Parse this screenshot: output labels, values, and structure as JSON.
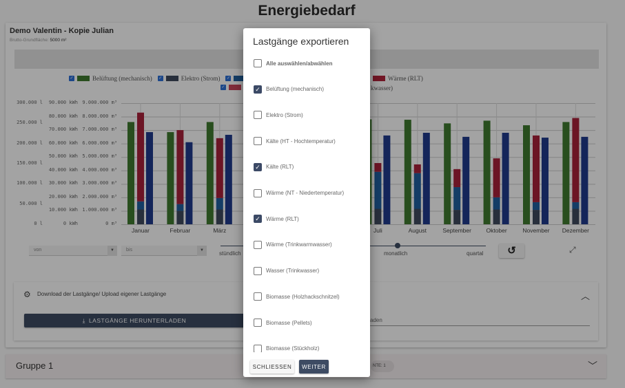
{
  "page": {
    "title": "Energiebedarf"
  },
  "card": {
    "title": "Demo Valentin - Kopie Julian",
    "area_label": "Brutto-Grundfläche:",
    "area_value": "5000 m²"
  },
  "legend": [
    {
      "label": "Belüftung (mechanisch)",
      "color": "#3f7a2f",
      "checked": true
    },
    {
      "label": "Elektro (Strom)",
      "color": "#3e4a5e",
      "checked": true
    },
    {
      "label": "",
      "color": "#1f5fa0",
      "checked": true
    },
    {
      "label": "Wärme (NT - Niedertemperatur)",
      "color": "#b0233a",
      "checked": true
    },
    {
      "label": "Wärme (RLT)",
      "color": "#b0233a",
      "checked": true
    }
  ],
  "legend_row2": [
    {
      "label": "",
      "color": "#c8455a",
      "checked": true
    }
  ],
  "legend_row2_tail": "kwasser)",
  "chart_data": {
    "type": "bar",
    "categories": [
      "Januar",
      "Februar",
      "März",
      "April",
      "Mai",
      "Juni",
      "Juli",
      "August",
      "September",
      "Oktober",
      "November",
      "Dezember"
    ],
    "y_axes": [
      {
        "ticks": [
          "0 l",
          "50.000 l",
          "100.000 l",
          "150.000 l",
          "200.000 l",
          "250.000 l",
          "300.000 l"
        ],
        "range": [
          0,
          300000
        ]
      },
      {
        "ticks": [
          "0 kWh",
          "10.000 kWh",
          "20.000 kWh",
          "30.000 kWh",
          "40.000 kWh",
          "50.000 kWh",
          "60.000 kWh",
          "70.000 kWh",
          "80.000 kWh",
          "90.000 kWh"
        ],
        "range": [
          0,
          90000
        ]
      },
      {
        "ticks": [
          "0 m³",
          "1.000.000 m³",
          "2.000.000 m³",
          "3.000.000 m³",
          "4.000.000 m³",
          "5.000.000 m³",
          "6.000.000 m³",
          "7.000.000 m³",
          "8.000.000 m³",
          "9.000.000 m³"
        ],
        "range": [
          0,
          9000000
        ]
      }
    ],
    "grid": true,
    "series": [
      {
        "color": "#3f7a2f",
        "group": "a",
        "values": [
          76000,
          68500,
          76000,
          null,
          null,
          null,
          78000,
          77700,
          75000,
          77000,
          73600,
          76000
        ]
      },
      {
        "color": "#3e4a5e",
        "group": "stack",
        "values": [
          11000,
          10000,
          11000,
          null,
          null,
          null,
          11500,
          11500,
          10700,
          11000,
          10700,
          11500
        ]
      },
      {
        "color": "#1f5fa0",
        "group": "stack",
        "values": [
          6000,
          5000,
          8500,
          null,
          null,
          null,
          27500,
          26500,
          16900,
          9000,
          5700,
          4900
        ]
      },
      {
        "color": "#a8213a",
        "group": "stack",
        "values": [
          66000,
          55000,
          44500,
          null,
          null,
          null,
          6500,
          6500,
          13400,
          29000,
          49600,
          62600
        ]
      },
      {
        "color": "#1f3a8c",
        "group": "c",
        "values": [
          68500,
          61000,
          66500,
          null,
          null,
          null,
          66000,
          68000,
          65000,
          68000,
          64400,
          65000
        ]
      }
    ]
  },
  "controls": {
    "from_placeholder": "von",
    "to_placeholder": "bis",
    "slider_labels": [
      "stündlich",
      "monatlich",
      "quartal"
    ],
    "slider_value": "monatlich"
  },
  "panel": {
    "title": "Download der Lastgänge/ Upload eigener Lastgänge",
    "download_label": "LASTGÄNGE HERUNTERLADEN",
    "upload_visible_text": "aden"
  },
  "group": {
    "title": "Gruppe 1",
    "badge": "NTE: 1"
  },
  "modal": {
    "title": "Lastgänge exportieren",
    "items": [
      {
        "label": "Alle auswählen/abwählen",
        "checked": false,
        "bold": true
      },
      {
        "label": "Belüftung (mechanisch)",
        "checked": true
      },
      {
        "label": "Elektro (Strom)",
        "checked": false
      },
      {
        "label": "Kälte (HT - Hochtemperatur)",
        "checked": false
      },
      {
        "label": "Kälte (RLT)",
        "checked": true
      },
      {
        "label": "Wärme (NT - Niedertemperatur)",
        "checked": false
      },
      {
        "label": "Wärme (RLT)",
        "checked": true
      },
      {
        "label": "Wärme (Trinkwarmwasser)",
        "checked": false
      },
      {
        "label": "Wasser (Trinkwasser)",
        "checked": false
      },
      {
        "label": "Biomasse (Holzhackschnitzel)",
        "checked": false
      },
      {
        "label": "Biomasse (Pellets)",
        "checked": false
      },
      {
        "label": "Biomasse (Stückholz)",
        "checked": false
      }
    ],
    "close_label": "SCHLIESSEN",
    "next_label": "WEITER"
  }
}
